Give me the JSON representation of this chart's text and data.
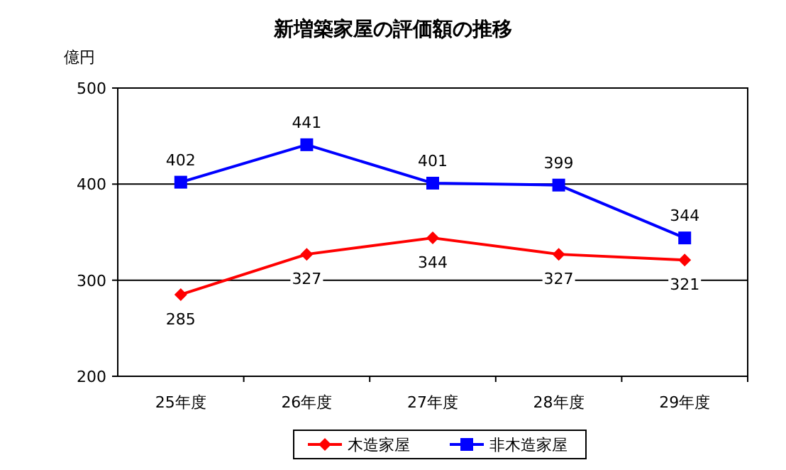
{
  "chart_data": {
    "type": "line",
    "title": "新増築家屋の評価額の推移",
    "ylabel": "億円",
    "categories": [
      "25年度",
      "26年度",
      "27年度",
      "28年度",
      "29年度"
    ],
    "series": [
      {
        "name": "木造家屋",
        "color": "#ff0000",
        "marker": "diamond",
        "values": [
          285,
          327,
          344,
          327,
          321
        ]
      },
      {
        "name": "非木造家屋",
        "color": "#0000ff",
        "marker": "square",
        "values": [
          402,
          441,
          401,
          399,
          344
        ]
      }
    ],
    "ylim": [
      200,
      500
    ],
    "yticks": [
      200,
      300,
      400,
      500
    ],
    "grid": "y",
    "legend": "bottom",
    "data_labels": true
  }
}
